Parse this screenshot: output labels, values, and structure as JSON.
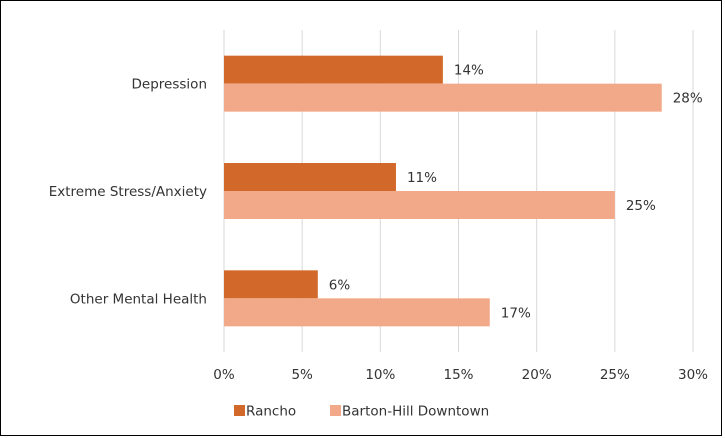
{
  "chart_data": {
    "type": "bar",
    "orientation": "horizontal",
    "categories": [
      "Depression",
      "Extreme Stress/Anxiety",
      "Other Mental Health"
    ],
    "series": [
      {
        "name": "Rancho",
        "values": [
          14,
          11,
          6
        ],
        "color": "#d2692a",
        "data_labels": [
          "14%",
          "11%",
          "6%"
        ]
      },
      {
        "name": "Barton-Hill Downtown",
        "values": [
          28,
          25,
          17
        ],
        "color": "#f2a98a",
        "data_labels": [
          "28%",
          "25%",
          "17%"
        ]
      }
    ],
    "xlim": [
      0,
      30
    ],
    "x_ticks": [
      "0%",
      "5%",
      "10%",
      "15%",
      "20%",
      "25%",
      "30%"
    ],
    "grid": true,
    "legend": "bottom"
  }
}
